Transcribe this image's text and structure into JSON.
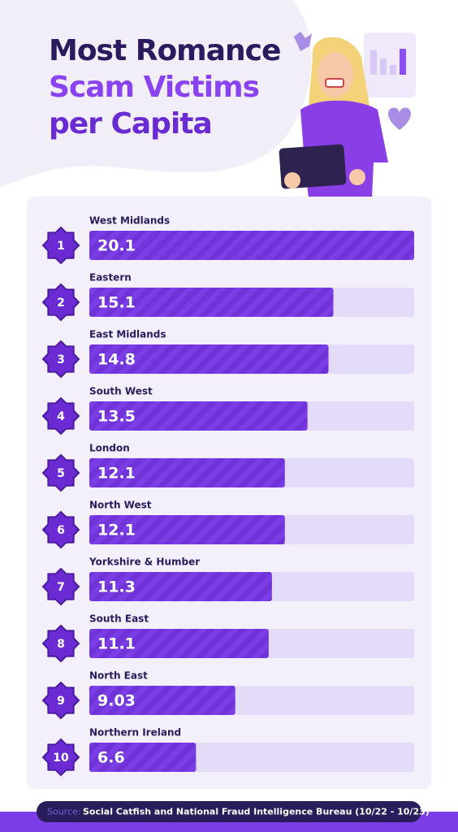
{
  "chart_data": {
    "type": "bar",
    "orientation": "horizontal",
    "title": [
      "Most Romance",
      "Scam Victims",
      "per Capita"
    ],
    "categories": [
      "West Midlands",
      "Eastern",
      "East Midlands",
      "South West",
      "London",
      "North West",
      "Yorkshire & Humber",
      "South East",
      "North East",
      "Northern Ireland"
    ],
    "ranks": [
      1,
      2,
      3,
      4,
      5,
      6,
      7,
      8,
      9,
      10
    ],
    "values": [
      20.1,
      15.1,
      14.8,
      13.5,
      12.1,
      12.1,
      11.3,
      11.1,
      9.03,
      6.6
    ],
    "color": "#7a3de6",
    "source_label": "Source:",
    "source": "Social Catfish and National Fraud Intelligence Bureau (10/22 - 10/23)"
  }
}
